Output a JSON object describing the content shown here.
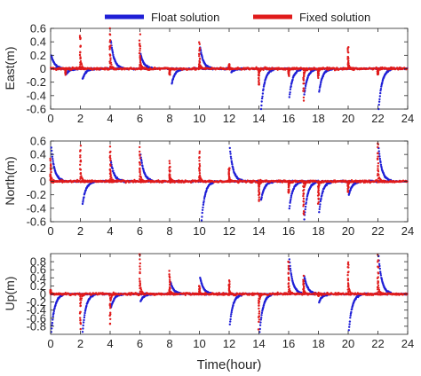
{
  "chart_data": [
    {
      "type": "scatter",
      "ylabel": "East(m)",
      "xlim": [
        0,
        24
      ],
      "ylim": [
        -0.6,
        0.6
      ],
      "yticks": [
        "-0.6",
        "-0.4",
        "-0.2",
        "0",
        "0.2",
        "0.4",
        "0.6"
      ],
      "xticks": [
        "0",
        "2",
        "4",
        "6",
        "8",
        "10",
        "12",
        "14",
        "16",
        "18",
        "20",
        "22",
        "24"
      ],
      "series": [
        {
          "name": "Float solution",
          "color": "#1f1fd6",
          "events": [
            [
              0.05,
              0.2
            ],
            [
              1.05,
              -0.08
            ],
            [
              2.15,
              -0.15
            ],
            [
              4.05,
              0.42
            ],
            [
              6.05,
              0.22
            ],
            [
              8.15,
              -0.22
            ],
            [
              10.05,
              0.32
            ],
            [
              12.15,
              -0.05
            ],
            [
              14.15,
              -0.6
            ],
            [
              16.05,
              -0.42
            ],
            [
              17.05,
              -0.38
            ],
            [
              18.05,
              -0.34
            ],
            [
              22.05,
              -0.6
            ]
          ]
        },
        {
          "name": "Fixed solution",
          "color": "#e01b1b",
          "spikes": [
            [
              1.0,
              -0.08
            ],
            [
              2.0,
              0.5
            ],
            [
              4.0,
              0.55
            ],
            [
              6.0,
              0.5
            ],
            [
              8.0,
              -0.1
            ],
            [
              10.0,
              0.35
            ],
            [
              12.0,
              0.06
            ],
            [
              14.0,
              -0.22
            ],
            [
              16.0,
              -0.1
            ],
            [
              17.0,
              -0.42
            ],
            [
              18.0,
              -0.12
            ],
            [
              20.0,
              0.3
            ],
            [
              22.0,
              -0.08
            ]
          ]
        }
      ]
    },
    {
      "type": "scatter",
      "ylabel": "North(m)",
      "xlim": [
        0,
        24
      ],
      "ylim": [
        -0.6,
        0.6
      ],
      "yticks": [
        "-0.6",
        "-0.4",
        "-0.2",
        "0",
        "0.2",
        "0.4",
        "0.6"
      ],
      "xticks": [
        "0",
        "2",
        "4",
        "6",
        "8",
        "10",
        "12",
        "14",
        "16",
        "18",
        "20",
        "22",
        "24"
      ],
      "series": [
        {
          "name": "Float solution",
          "color": "#1f1fd6",
          "events": [
            [
              0.05,
              0.5
            ],
            [
              2.15,
              -0.34
            ],
            [
              4.05,
              0.3
            ],
            [
              6.05,
              0.4
            ],
            [
              10.15,
              -0.58
            ],
            [
              12.05,
              0.5
            ],
            [
              14.15,
              -0.28
            ],
            [
              16.05,
              -0.4
            ],
            [
              17.05,
              -0.56
            ],
            [
              18.05,
              -0.46
            ],
            [
              20.05,
              -0.2
            ],
            [
              22.05,
              0.5
            ]
          ]
        },
        {
          "name": "Fixed solution",
          "color": "#e01b1b",
          "spikes": [
            [
              0.0,
              0.3
            ],
            [
              2.0,
              0.5
            ],
            [
              4.0,
              0.5
            ],
            [
              6.0,
              0.45
            ],
            [
              8.0,
              0.28
            ],
            [
              10.0,
              0.42
            ],
            [
              12.0,
              0.2
            ],
            [
              14.0,
              -0.28
            ],
            [
              16.0,
              -0.18
            ],
            [
              17.0,
              -0.5
            ],
            [
              18.0,
              -0.3
            ],
            [
              20.0,
              -0.15
            ],
            [
              22.0,
              0.58
            ]
          ]
        }
      ]
    },
    {
      "type": "scatter",
      "ylabel": "Up(m)",
      "xlabel": "Time(hour)",
      "xlim": [
        0,
        24
      ],
      "ylim": [
        -1.0,
        1.0
      ],
      "yticks": [
        "-0.8",
        "-0.6",
        "-0.4",
        "-0.2",
        "0",
        "0.2",
        "0.4",
        "0.6",
        "0.8"
      ],
      "xticks": [
        "0",
        "2",
        "4",
        "6",
        "8",
        "10",
        "12",
        "14",
        "16",
        "18",
        "20",
        "22",
        "24"
      ],
      "series": [
        {
          "name": "Float solution",
          "color": "#1f1fd6",
          "events": [
            [
              0.05,
              -0.95
            ],
            [
              2.15,
              -0.95
            ],
            [
              4.05,
              -0.35
            ],
            [
              6.05,
              -0.18
            ],
            [
              8.05,
              0.3
            ],
            [
              10.05,
              0.4
            ],
            [
              12.05,
              -0.75
            ],
            [
              14.05,
              -0.95
            ],
            [
              16.05,
              0.85
            ],
            [
              17.05,
              0.45
            ],
            [
              18.05,
              -0.2
            ],
            [
              20.05,
              -0.9
            ],
            [
              22.05,
              0.92
            ]
          ]
        },
        {
          "name": "Fixed solution",
          "color": "#e01b1b",
          "spikes": [
            [
              0.0,
              0.1
            ],
            [
              2.0,
              -0.85
            ],
            [
              4.0,
              -0.7
            ],
            [
              6.0,
              0.92
            ],
            [
              8.0,
              0.5
            ],
            [
              10.0,
              0.2
            ],
            [
              12.0,
              0.3
            ],
            [
              14.0,
              -0.8
            ],
            [
              16.0,
              0.8
            ],
            [
              17.0,
              0.4
            ],
            [
              18.0,
              -0.05
            ],
            [
              20.0,
              0.8
            ],
            [
              22.0,
              0.85
            ]
          ]
        }
      ]
    }
  ],
  "legend": {
    "entries": [
      {
        "label": "Float solution",
        "color": "#1f1fd6"
      },
      {
        "label": "Fixed solution",
        "color": "#e01b1b"
      }
    ],
    "placement": "top"
  }
}
